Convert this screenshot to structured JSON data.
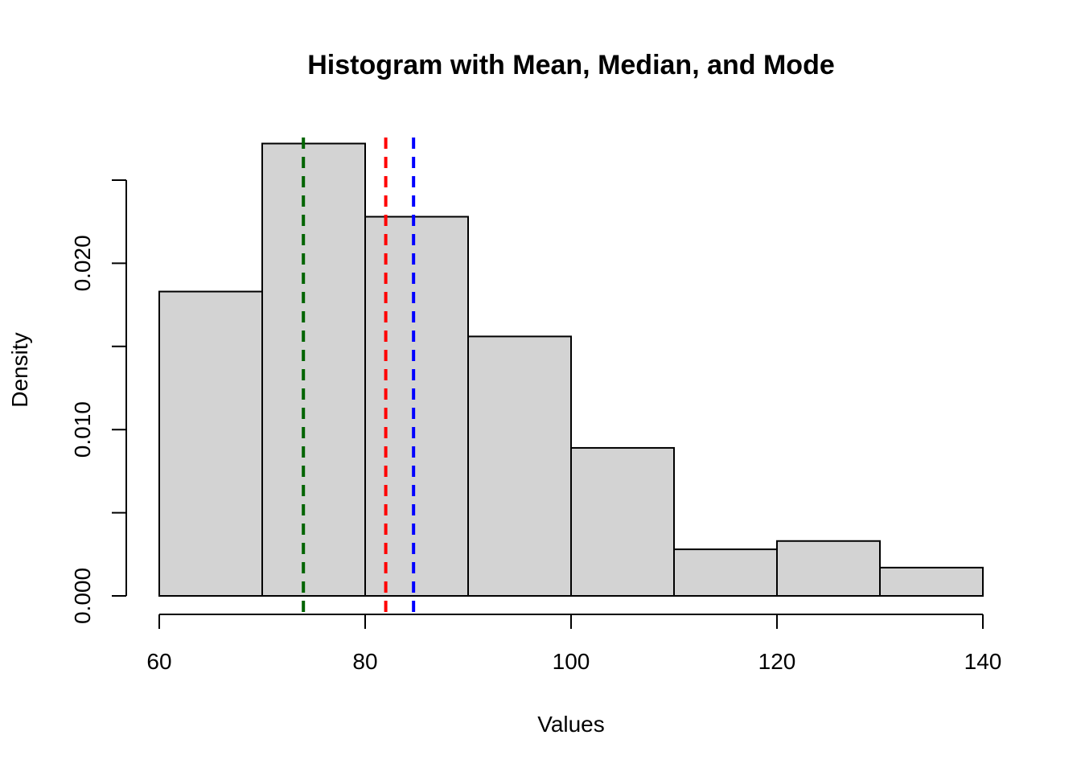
{
  "chart_data": {
    "type": "bar",
    "title": "Histogram with Mean, Median, and Mode",
    "xlabel": "Values",
    "ylabel": "Density",
    "xlim": [
      60,
      140
    ],
    "ylim": [
      0,
      0.025
    ],
    "x_ticks": [
      60,
      80,
      100,
      120,
      140
    ],
    "x_tick_labels": [
      "60",
      "80",
      "100",
      "120",
      "140"
    ],
    "y_ticks": [
      0,
      0.005,
      0.01,
      0.015,
      0.02,
      0.025
    ],
    "y_tick_labels": [
      "0.000",
      "",
      "0.010",
      "",
      "0.020",
      ""
    ],
    "bins": [
      {
        "from": 60,
        "to": 70,
        "density": 0.0183
      },
      {
        "from": 70,
        "to": 80,
        "density": 0.0272
      },
      {
        "from": 80,
        "to": 90,
        "density": 0.0228
      },
      {
        "from": 90,
        "to": 100,
        "density": 0.0156
      },
      {
        "from": 100,
        "to": 110,
        "density": 0.0089
      },
      {
        "from": 110,
        "to": 120,
        "density": 0.0028
      },
      {
        "from": 120,
        "to": 130,
        "density": 0.0033
      },
      {
        "from": 130,
        "to": 140,
        "density": 0.0017
      }
    ],
    "bar_color": "#d3d3d3",
    "vertical_lines": [
      {
        "value": 74.0,
        "color": "#006400",
        "style": "dashed"
      },
      {
        "value": 82.0,
        "color": "#ff0000",
        "style": "dashed"
      },
      {
        "value": 84.7,
        "color": "#0000ff",
        "style": "dashed"
      }
    ],
    "grid": false,
    "legend": "none"
  }
}
